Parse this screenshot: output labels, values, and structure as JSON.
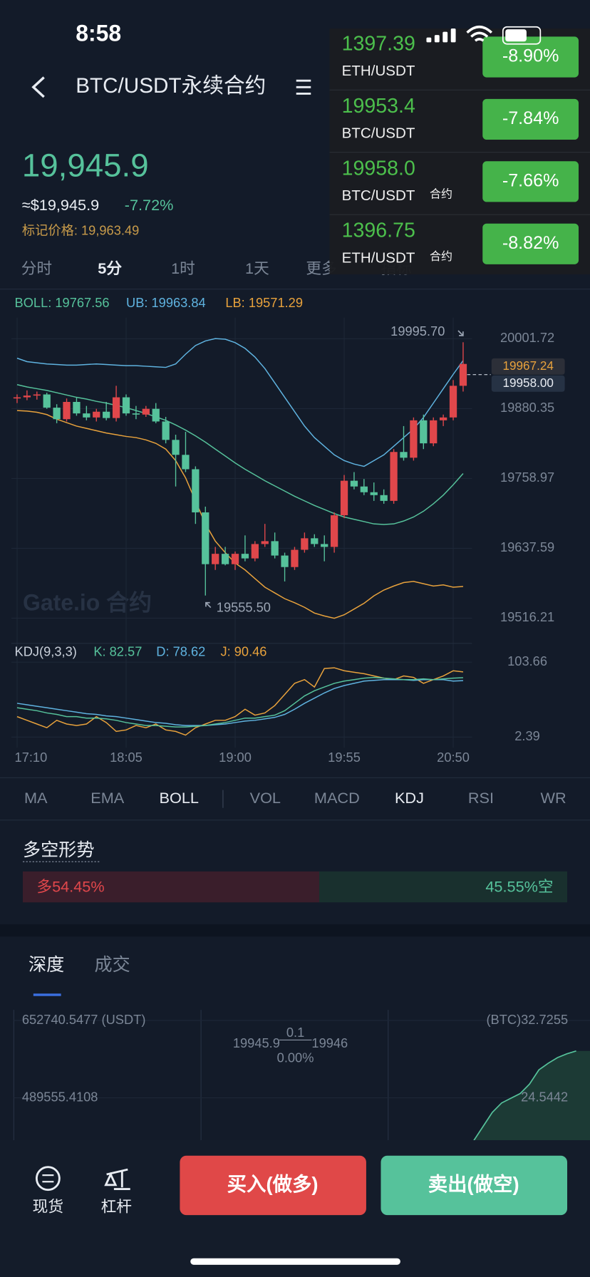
{
  "status_bar": {
    "time": "8:58"
  },
  "header": {
    "title": "BTC/USDT永续合约"
  },
  "notifications": [
    {
      "price": "1397.39",
      "pair": "ETH/USDT",
      "change": "-8.90%"
    },
    {
      "price": "19953.4",
      "pair": "BTC/USDT",
      "change": "-7.84%"
    },
    {
      "price": "19958.0",
      "pair": "BTC/USDT",
      "tag": "合约",
      "change": "-7.66%"
    },
    {
      "price": "1396.75",
      "pair": "ETH/USDT",
      "tag": "合约",
      "change": "-8.82%"
    }
  ],
  "ticker": {
    "last": "19,945.9",
    "usd": "≈$19,945.9",
    "change": "-7.72%",
    "mark_price": "标记价格: 19,963.49"
  },
  "intervals": [
    "分时",
    "5分",
    "1时",
    "1天",
    "更多",
    "指标"
  ],
  "chart": {
    "legend": {
      "boll": "BOLL: 19767.56",
      "ub": "UB: 19963.84",
      "lb": "LB: 19571.29"
    },
    "ylim": [
      19479.4,
      20038.5
    ],
    "yticks": [
      20001.72,
      19880.35,
      19758.97,
      19637.59,
      19516.21
    ],
    "times": [
      "17:10",
      null,
      null,
      null,
      null,
      null,
      null,
      null,
      null,
      null,
      null,
      "18:05",
      null,
      null,
      null,
      null,
      null,
      null,
      null,
      null,
      null,
      null,
      "19:00",
      null,
      null,
      null,
      null,
      null,
      null,
      null,
      null,
      null,
      null,
      "19:55",
      null,
      null,
      null,
      null,
      null,
      null,
      null,
      null,
      null,
      null,
      "20:50",
      null
    ],
    "candles": [
      [
        19898,
        19905,
        19890,
        19900
      ],
      [
        19900,
        19912,
        19895,
        19903
      ],
      [
        19903,
        19910,
        19896,
        19905
      ],
      [
        19905,
        19908,
        19880,
        19882
      ],
      [
        19882,
        19888,
        19855,
        19862
      ],
      [
        19862,
        19898,
        19858,
        19892
      ],
      [
        19892,
        19900,
        19868,
        19872
      ],
      [
        19872,
        19885,
        19860,
        19865
      ],
      [
        19865,
        19880,
        19858,
        19875
      ],
      [
        19875,
        19892,
        19860,
        19864
      ],
      [
        19864,
        19920,
        19858,
        19900
      ],
      [
        19900,
        19905,
        19868,
        19872
      ],
      [
        19872,
        19885,
        19862,
        19870
      ],
      [
        19870,
        19885,
        19866,
        19880
      ],
      [
        19880,
        19890,
        19855,
        19858
      ],
      [
        19858,
        19866,
        19820,
        19826
      ],
      [
        19826,
        19835,
        19745,
        19800
      ],
      [
        19800,
        19840,
        19770,
        19775
      ],
      [
        19775,
        19780,
        19680,
        19700
      ],
      [
        19700,
        19710,
        19555.5,
        19610
      ],
      [
        19610,
        19640,
        19600,
        19628
      ],
      [
        19628,
        19640,
        19608,
        19610
      ],
      [
        19610,
        19632,
        19600,
        19628
      ],
      [
        19628,
        19660,
        19615,
        19620
      ],
      [
        19620,
        19650,
        19615,
        19645
      ],
      [
        19645,
        19680,
        19640,
        19650
      ],
      [
        19650,
        19665,
        19620,
        19625
      ],
      [
        19625,
        19630,
        19580,
        19605
      ],
      [
        19605,
        19640,
        19600,
        19635
      ],
      [
        19635,
        19665,
        19630,
        19655
      ],
      [
        19655,
        19662,
        19640,
        19645
      ],
      [
        19645,
        19660,
        19615,
        19640
      ],
      [
        19640,
        19700,
        19630,
        19695
      ],
      [
        19695,
        19765,
        19690,
        19755
      ],
      [
        19755,
        19770,
        19740,
        19745
      ],
      [
        19745,
        19758,
        19730,
        19735
      ],
      [
        19735,
        19752,
        19720,
        19730
      ],
      [
        19730,
        19740,
        19715,
        19720
      ],
      [
        19720,
        19810,
        19715,
        19805
      ],
      [
        19805,
        19850,
        19790,
        19795
      ],
      [
        19795,
        19865,
        19790,
        19860
      ],
      [
        19860,
        19870,
        19810,
        19820
      ],
      [
        19820,
        19865,
        19815,
        19860
      ],
      [
        19860,
        19870,
        19850,
        19865
      ],
      [
        19865,
        19930,
        19860,
        19920
      ],
      [
        19920,
        19995.7,
        19910,
        19958
      ]
    ],
    "ub": [
      19968,
      19962,
      19960,
      19958,
      19957,
      19956,
      19956,
      19957,
      19958,
      19957,
      19956,
      19955,
      19955,
      19954,
      19953,
      19952,
      19958,
      19975,
      19990,
      19998,
      20002,
      20001,
      19995,
      19985,
      19970,
      19950,
      19925,
      19900,
      19875,
      19850,
      19830,
      19815,
      19800,
      19790,
      19784,
      19780,
      19790,
      19800,
      19815,
      19830,
      19845,
      19865,
      19890,
      19915,
      19940,
      19963.84
    ],
    "mid": [
      19922,
      19918,
      19915,
      19912,
      19908,
      19904,
      19900,
      19897,
      19893,
      19890,
      19886,
      19882,
      19877,
      19872,
      19866,
      19860,
      19852,
      19843,
      19833,
      19822,
      19810,
      19798,
      19786,
      19775,
      19765,
      19755,
      19746,
      19737,
      19728,
      19720,
      19712,
      19705,
      19698,
      19692,
      19688,
      19684,
      19680,
      19679,
      19680,
      19685,
      19692,
      19702,
      19715,
      19730,
      19748,
      19767.56
    ],
    "lb": [
      19877,
      19876,
      19874,
      19870,
      19862,
      19856,
      19850,
      19846,
      19842,
      19838,
      19835,
      19832,
      19830,
      19826,
      19820,
      19810,
      19790,
      19760,
      19720,
      19680,
      19650,
      19630,
      19612,
      19600,
      19585,
      19570,
      19560,
      19550,
      19543,
      19535,
      19525,
      19520,
      19516,
      19522,
      19532,
      19542,
      19555,
      19565,
      19572,
      19578,
      19580,
      19576,
      19572,
      19574,
      19570,
      19571.29
    ],
    "high_note": "19995.70",
    "low_note": "19555.50",
    "mark_tag": "19967.24",
    "last_tag": "19958.00",
    "watermark": "Gate.io 合约"
  },
  "kdj": {
    "legend": {
      "name": "KDJ(9,3,3)",
      "k": "K: 82.57",
      "d": "D: 78.62",
      "j": "J: 90.46"
    },
    "ylim": [
      -11.92,
      112.47
    ],
    "yticks": [
      103.66,
      2.39
    ],
    "k": [
      42,
      40,
      38,
      35,
      33,
      30,
      30,
      28,
      28,
      27,
      25,
      22,
      20,
      18,
      18,
      17,
      16,
      16,
      17,
      18,
      20,
      22,
      25,
      28,
      28,
      30,
      32,
      38,
      48,
      58,
      65,
      70,
      75,
      78,
      80,
      82,
      83,
      82,
      81,
      80,
      80,
      81,
      80,
      81,
      82,
      82.57
    ],
    "d": [
      48,
      46,
      44,
      42,
      40,
      38,
      36,
      34,
      33,
      31,
      30,
      28,
      26,
      24,
      22,
      21,
      19,
      18,
      18,
      18,
      19,
      20,
      22,
      24,
      25,
      27,
      29,
      33,
      40,
      48,
      55,
      62,
      68,
      72,
      75,
      78,
      79,
      80,
      80,
      80,
      79,
      80,
      80,
      80,
      78,
      78.62
    ],
    "j": [
      30,
      25,
      20,
      15,
      25,
      20,
      18,
      20,
      30,
      22,
      10,
      12,
      18,
      15,
      20,
      12,
      10,
      5,
      15,
      20,
      25,
      25,
      30,
      40,
      32,
      35,
      45,
      60,
      75,
      80,
      70,
      95,
      96,
      92,
      90,
      88,
      85,
      82,
      80,
      85,
      83,
      75,
      80,
      85,
      92,
      90.46
    ]
  },
  "indicators": [
    "MA",
    "EMA",
    "BOLL",
    "VOL",
    "MACD",
    "KDJ",
    "RSI",
    "WR"
  ],
  "sentiment": {
    "title": "多空形势",
    "long": 54.45,
    "long_label": "多54.45%",
    "short": 45.55,
    "short_label": "45.55%空"
  },
  "depth": {
    "tabs": [
      "深度",
      "成交"
    ],
    "left_ticks": [
      {
        "value": 652740.5477,
        "label": "652740.5477 (USDT)"
      },
      489555.4108
    ],
    "right_ticks": [
      {
        "value": 32.7255,
        "label": "(BTC)32.7255"
      },
      24.5442
    ],
    "bid_price": "19945.9",
    "spread": "0.1",
    "ask_price": "19946",
    "spread_pct": "0.00%",
    "asks": [
      20,
      21.5,
      23,
      24,
      24.5,
      25,
      26,
      27.5,
      28.2,
      28.8,
      29.2,
      29.5
    ]
  },
  "bottom_nav": {
    "spot": "现货",
    "margin": "杠杆",
    "buy": "买入(做多)",
    "sell": "卖出(做空)"
  }
}
